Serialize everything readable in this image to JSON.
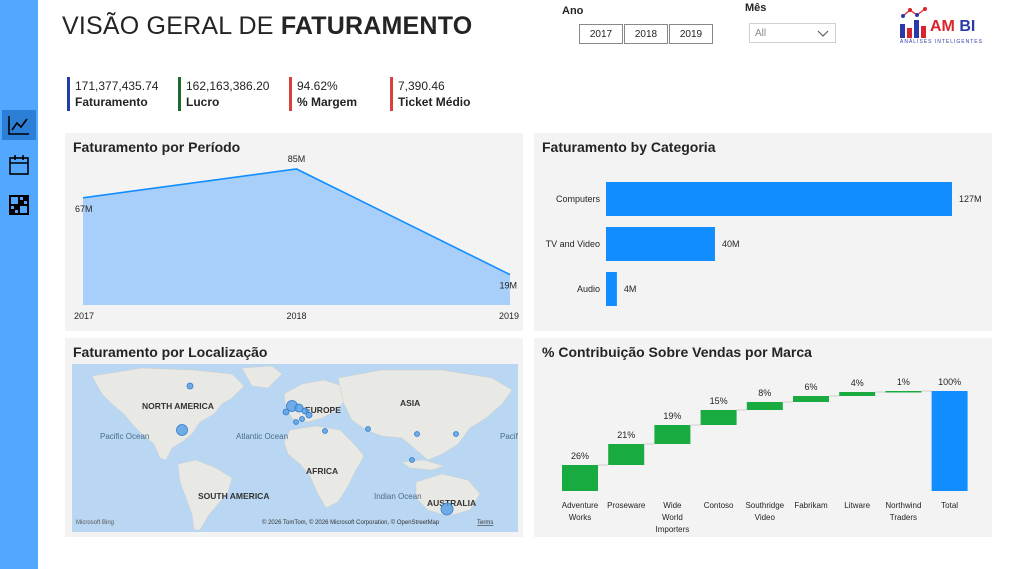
{
  "header": {
    "title_light": "VISÃO GERAL DE ",
    "title_bold": "FATURAMENTO"
  },
  "nav": {
    "items": [
      {
        "name": "line-chart-icon",
        "active": true
      },
      {
        "name": "calendar-icon",
        "active": false
      },
      {
        "name": "matrix-icon",
        "active": false
      }
    ]
  },
  "slicers": {
    "year_label": "Ano",
    "years": [
      "2017",
      "2018",
      "2019"
    ],
    "month_label": "Mês",
    "month_value": "All"
  },
  "logo": {
    "text_am": "AM",
    "text_bi": " BI",
    "subtitle": "ANÁLISES INTELIGENTES"
  },
  "kpis": [
    {
      "value": "171,377,435.74",
      "label": "Faturamento",
      "color": "#1f3fa8"
    },
    {
      "value": "162,163,386.20",
      "label": "Lucro",
      "color": "#1e6b2e"
    },
    {
      "value": "94.62%",
      "label": "% Margem",
      "color": "#d9413f"
    },
    {
      "value": "7,390.46",
      "label": "Ticket Médio",
      "color": "#d9413f"
    }
  ],
  "panels": {
    "periodo_title": "Faturamento por Período",
    "categoria_title": "Faturamento by Categoria",
    "localizacao_title": "Faturamento por Localização",
    "contribuicao_title": "% Contribuição Sobre Vendas por Marca"
  },
  "chart_data": [
    {
      "type": "area",
      "title": "Faturamento por Período",
      "categories": [
        "2017",
        "2018",
        "2019"
      ],
      "values": [
        67,
        85,
        19
      ],
      "labels": [
        "67M",
        "85M",
        "19M"
      ],
      "unit": "M",
      "ylim": [
        0,
        90
      ],
      "color": "#118dff",
      "fill": "#a7cffa"
    },
    {
      "type": "bar",
      "orientation": "horizontal",
      "title": "Faturamento by Categoria",
      "categories": [
        "Computers",
        "TV and Video",
        "Audio"
      ],
      "values": [
        127,
        40,
        4
      ],
      "labels": [
        "127M",
        "40M",
        "4M"
      ],
      "unit": "M",
      "color": "#118dff"
    },
    {
      "type": "waterfall",
      "title": "% Contribuição Sobre Vendas por Marca",
      "categories": [
        "Adventure Works",
        "Proseware",
        "Wide World Importers",
        "Contoso",
        "Southridge Video",
        "Fabrikam",
        "Litware",
        "Northwind Traders",
        "Total"
      ],
      "values": [
        26,
        21,
        19,
        15,
        8,
        6,
        4,
        1,
        100
      ],
      "labels": [
        "26%",
        "21%",
        "19%",
        "15%",
        "8%",
        "6%",
        "4%",
        "1%",
        "100%"
      ],
      "unit": "%",
      "increase_color": "#1aab40",
      "total_color": "#118dff"
    }
  ],
  "map": {
    "continent_labels": [
      "NORTH AMERICA",
      "EUROPE",
      "ASIA",
      "AFRICA",
      "SOUTH AMERICA",
      "AUSTRALIA"
    ],
    "ocean_labels": [
      "Pacific Ocean",
      "Atlantic Ocean",
      "Indian Ocean",
      "Pacific Ocean"
    ],
    "attribution": "© 2026 TomTom, © 2026 Microsoft Corporation, © OpenStreetMap",
    "terms": "Terms",
    "brand": "Microsoft Bing",
    "water_color": "#b9d7f2",
    "land_color": "#e8e8e4",
    "bubble_color": "#5aa0e6"
  }
}
